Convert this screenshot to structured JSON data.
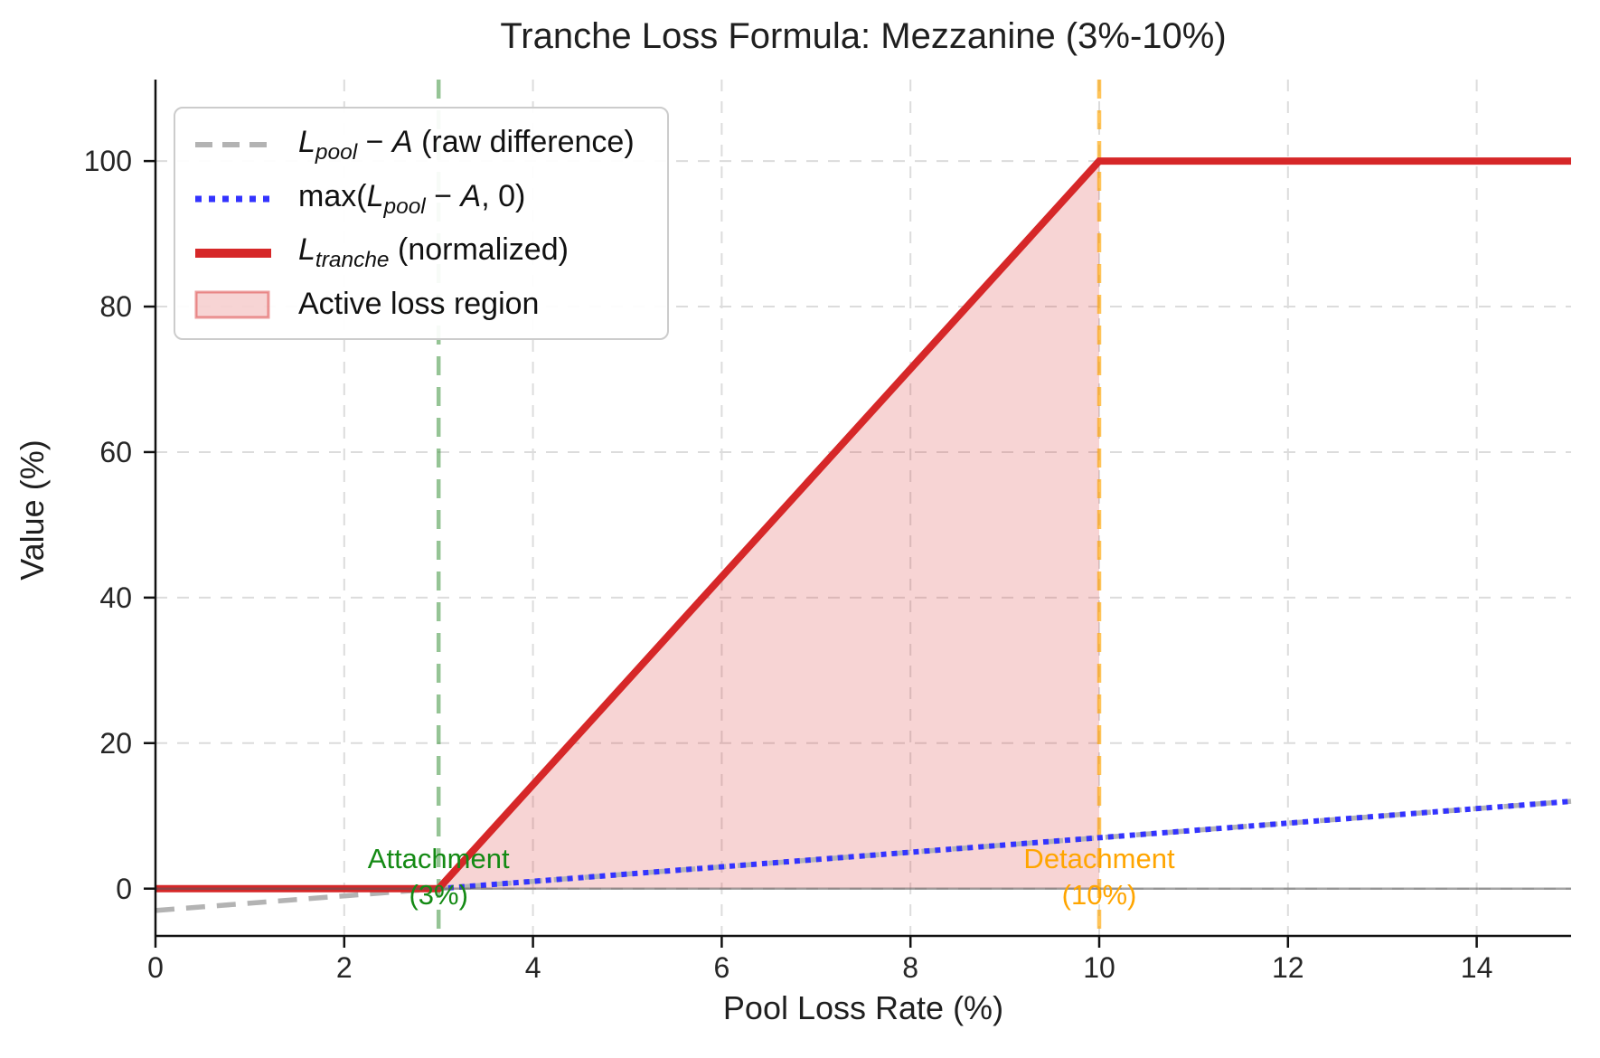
{
  "chart_data": {
    "type": "line",
    "title": "Tranche Loss Formula: Mezzanine (3%-10%)",
    "xlabel": "Pool Loss Rate (%)",
    "ylabel": "Value (%)",
    "xlim": [
      0,
      15
    ],
    "ylim": [
      -6.5,
      111.2
    ],
    "x_ticks": [
      0,
      2,
      4,
      6,
      8,
      10,
      12,
      14
    ],
    "y_ticks": [
      0,
      20,
      40,
      60,
      80,
      100
    ],
    "grid": true,
    "grid_style": "dashed",
    "grid_color": "#dcdcdc",
    "legend_position": "upper left",
    "series": [
      {
        "name": "raw-difference",
        "legend_label": "L_pool − A (raw difference)",
        "style": "dashed",
        "color": "#b3b3b3",
        "x": [
          0,
          15
        ],
        "y": [
          -3,
          12
        ]
      },
      {
        "name": "hinge",
        "legend_label": "max(L_pool − A, 0)",
        "style": "dotted",
        "color": "#3333ff",
        "x": [
          0,
          3,
          15
        ],
        "y": [
          0,
          0,
          12
        ]
      },
      {
        "name": "tranche-normalized",
        "legend_label": "L_tranche (normalized)",
        "style": "solid",
        "color": "#d62728",
        "x": [
          0,
          3,
          10,
          15
        ],
        "y": [
          0,
          0,
          100,
          100
        ]
      }
    ],
    "fill_region": {
      "label": "Active loss region",
      "polygon": [
        [
          3,
          0
        ],
        [
          10,
          100
        ],
        [
          10,
          0
        ]
      ],
      "fill": "rgba(214,39,40,0.20)",
      "edge": "rgba(214,39,40,0.45)"
    },
    "vlines": [
      {
        "name": "attachment-line",
        "x": 3,
        "color": "rgba(44,138,44,0.5)",
        "style": "dashed"
      },
      {
        "name": "detachment-line",
        "x": 10,
        "color": "rgba(255,165,0,0.65)",
        "style": "dashed"
      }
    ],
    "zero_line": {
      "y": 0,
      "color": "rgba(90,90,90,0.55)"
    },
    "annotations": [
      {
        "name": "attachment-label",
        "line1": "Attachment",
        "line2": "(3%)",
        "x": 3,
        "color": "#148a14"
      },
      {
        "name": "detachment-label",
        "line1": "Detachment",
        "line2": "(10%)",
        "x": 10,
        "color": "#ffa500"
      }
    ],
    "legend": {
      "items": [
        {
          "pre": "",
          "var": "L",
          "sub": "pool",
          "mid": " − ",
          "var2": "A",
          "rest": " (raw difference)"
        },
        {
          "pre": "max(",
          "var": "L",
          "sub": "pool",
          "mid": " − ",
          "var2": "A",
          "rest": ", 0)"
        },
        {
          "pre": "",
          "var": "L",
          "sub": "tranche",
          "mid": "",
          "var2": "",
          "rest": " (normalized)"
        },
        {
          "pre": "",
          "var": "",
          "sub": "",
          "mid": "",
          "var2": "",
          "rest": "Active loss region"
        }
      ]
    }
  }
}
